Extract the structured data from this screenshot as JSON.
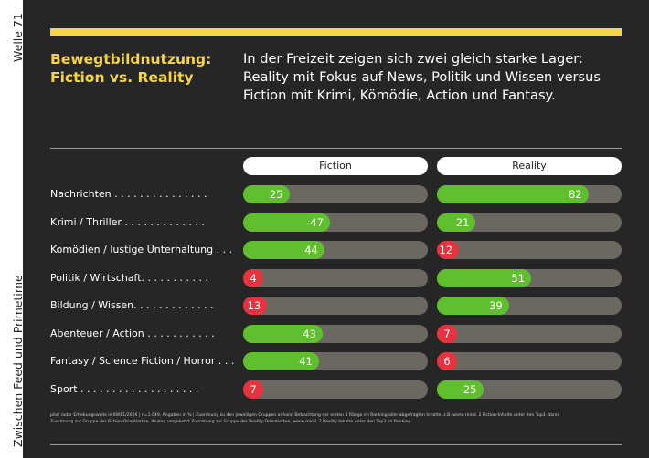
{
  "sidebar": {
    "top": "Welle 71",
    "bottom": "Zwischen Feed und Primetime"
  },
  "header": {
    "title_line1": "Bewegtbildnutzung:",
    "title_line2": "Fiction vs. Reality",
    "lead": "In der Freizeit zeigen sich zwei gleich starke Lager: Reality mit Fokus auf News, Politik und Wissen versus Fiction mit Krimi, Kömödie, Action und Fantasy."
  },
  "colors": {
    "background": "#262626",
    "accent": "#f5d547",
    "positive": "#5fbf2f",
    "negative": "#e8333f",
    "track": "#6b6861"
  },
  "chart_data": {
    "type": "bar",
    "orientation": "horizontal",
    "unit": "%",
    "xlim": [
      0,
      100
    ],
    "categories": [
      "Nachrichten",
      "Krimi / Thriller",
      "Komödien / lustige Unterhaltung",
      "Politik / Wirtschaft",
      "Bildung / Wissen",
      "Abenteuer / Action",
      "Fantasy / Science Fiction / Horror",
      "Sport"
    ],
    "category_labels": [
      "Nachrichten . . . . . . . . . . . . . . .",
      "Krimi / Thriller . . . . . . . . . . . . .",
      "Komödien / lustige Unterhaltung . . .",
      "Politik / Wirtschaft. . . . . . . . . . .",
      "Bildung / Wissen. . . . . . . . . . . . .",
      "Abenteuer / Action . . . . . . . . . . .",
      "Fantasy / Science Fiction / Horror . . .",
      "Sport . . . . . . . . . . . . . . . . . . ."
    ],
    "series": [
      {
        "name": "Fiction",
        "values": [
          25,
          47,
          44,
          4,
          13,
          43,
          41,
          7
        ]
      },
      {
        "name": "Reality",
        "values": [
          82,
          21,
          12,
          51,
          39,
          7,
          6,
          25
        ]
      }
    ],
    "red_below": 15
  },
  "footnote": "pilot radar Erhebungswelle in KW11/2026 | n=1.049, Angaben in % | Zuordnung zu den jeweiligen Gruppen anhand Betrachtung der ersten 3 Ränge im Ranking aller abgefragten Inhalte, z.B. wenn mind. 2 Fiction-Inhalte unter den Top3, dann Zuordnung zur Gruppe der Fiction-Orientierten. Analog umgekehrt Zuordnung zur Gruppe der Reality-Orientierten, wenn mind. 2 Reality Inhalte unter den Top3 im Ranking."
}
